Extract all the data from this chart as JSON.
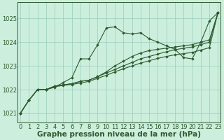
{
  "bg_color": "#cceedd",
  "grid_color": "#99ccbb",
  "line_color": "#2d5a2d",
  "marker_color": "#2d5a2d",
  "xlabel": "Graphe pression niveau de la mer (hPa)",
  "xlabel_fontsize": 7.5,
  "tick_fontsize": 6,
  "ytick_labels": [
    1021,
    1022,
    1023,
    1024,
    1025
  ],
  "ylim": [
    1020.6,
    1025.7
  ],
  "xlim": [
    -0.3,
    23.3
  ],
  "xtick_labels": [
    0,
    1,
    2,
    3,
    4,
    5,
    6,
    7,
    8,
    9,
    10,
    11,
    12,
    13,
    14,
    15,
    16,
    17,
    18,
    19,
    20,
    21,
    22,
    23
  ],
  "series": [
    [
      1021.0,
      1021.55,
      1022.0,
      1022.0,
      1022.1,
      1022.3,
      1022.5,
      1023.3,
      1023.3,
      1023.9,
      1024.6,
      1024.65,
      1024.4,
      1024.35,
      1024.4,
      1024.15,
      1024.0,
      1023.85,
      1023.7,
      1023.35,
      1023.3,
      1024.0,
      1024.9,
      1025.25
    ],
    [
      1021.0,
      1021.55,
      1022.0,
      1022.0,
      1022.15,
      1022.2,
      1022.25,
      1022.35,
      1022.4,
      1022.55,
      1022.7,
      1022.85,
      1023.0,
      1023.15,
      1023.3,
      1023.4,
      1023.5,
      1023.6,
      1023.68,
      1023.75,
      1023.8,
      1023.9,
      1024.0,
      1025.25
    ],
    [
      1021.0,
      1021.55,
      1022.0,
      1022.0,
      1022.15,
      1022.2,
      1022.25,
      1022.35,
      1022.4,
      1022.55,
      1022.75,
      1023.0,
      1023.2,
      1023.4,
      1023.55,
      1023.65,
      1023.7,
      1023.75,
      1023.8,
      1023.85,
      1023.9,
      1024.0,
      1024.1,
      1025.25
    ],
    [
      1021.0,
      1021.55,
      1022.0,
      1022.0,
      1022.12,
      1022.18,
      1022.22,
      1022.28,
      1022.35,
      1022.48,
      1022.6,
      1022.75,
      1022.88,
      1023.0,
      1023.12,
      1023.22,
      1023.32,
      1023.4,
      1023.47,
      1023.52,
      1023.57,
      1023.67,
      1023.77,
      1025.25
    ]
  ]
}
